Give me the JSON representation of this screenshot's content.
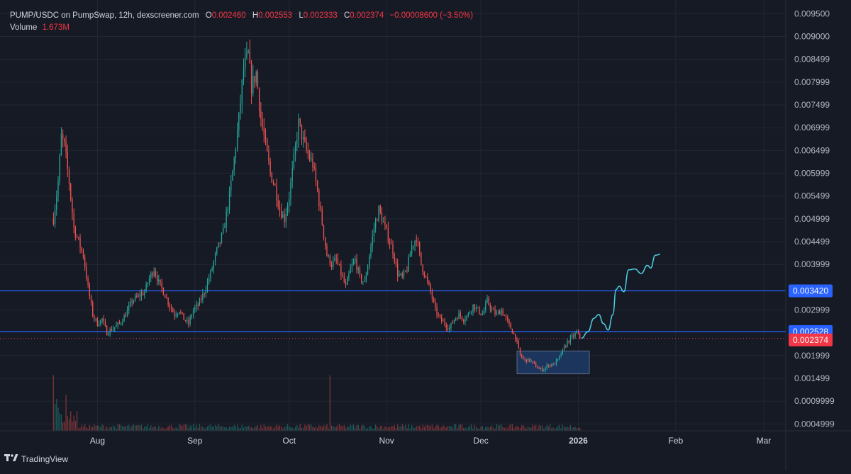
{
  "header": {
    "symbol": "PUMP/USDC on PumpSwap, 12h, dexscreener.com",
    "o_label": "O",
    "o_value": "0.002460",
    "h_label": "H",
    "h_value": "0.002553",
    "l_label": "L",
    "l_value": "0.002333",
    "c_label": "C",
    "c_value": "0.002374",
    "change": "−0.00008600 (−3.50%)",
    "volume_label": "Volume",
    "volume_value": "1.673M"
  },
  "branding": {
    "text": "TradingView",
    "icon": "tradingview-logo-icon"
  },
  "colors": {
    "background": "#161a25",
    "up": "#26a69a",
    "down": "#ef5350",
    "level_line": "#2962ff",
    "price_line": "#f23645",
    "projection": "#4dd0e1",
    "zone": "#1e3a66"
  },
  "chart_data": {
    "type": "candlestick",
    "interval": "12h",
    "y_axis": {
      "ylim": [
        0.00035,
        0.0098
      ],
      "ticks": [
        "0.009500",
        "0.009000",
        "0.008499",
        "0.007999",
        "0.007499",
        "0.006999",
        "0.006499",
        "0.005999",
        "0.005499",
        "0.004999",
        "0.004499",
        "0.003999",
        "0.002999",
        "0.001999",
        "0.001499",
        "0.0009999",
        "0.0004999"
      ]
    },
    "x_axis": {
      "ticks": [
        {
          "label": "Aug",
          "day": 12
        },
        {
          "label": "Sep",
          "day": 43
        },
        {
          "label": "Oct",
          "day": 73
        },
        {
          "label": "Nov",
          "day": 104
        },
        {
          "label": "Dec",
          "day": 134
        },
        {
          "label": "2026",
          "day": 165,
          "bold": true
        },
        {
          "label": "Feb",
          "day": 196
        },
        {
          "label": "Mar",
          "day": 224
        }
      ],
      "day_range": [
        -19,
        231
      ]
    },
    "close_path": [
      [
        -2,
        0.005
      ],
      [
        -0.5,
        0.0058
      ],
      [
        0.5,
        0.0068
      ],
      [
        1.5,
        0.0066
      ],
      [
        3,
        0.0058
      ],
      [
        4.5,
        0.0048
      ],
      [
        6,
        0.0045
      ],
      [
        7.5,
        0.0042
      ],
      [
        9,
        0.0035
      ],
      [
        10.5,
        0.0029
      ],
      [
        12,
        0.0027
      ],
      [
        13.5,
        0.0028
      ],
      [
        15,
        0.0025
      ],
      [
        17,
        0.0026
      ],
      [
        19,
        0.0027
      ],
      [
        21,
        0.0029
      ],
      [
        23,
        0.0032
      ],
      [
        25,
        0.0033
      ],
      [
        27,
        0.0034
      ],
      [
        28.5,
        0.0037
      ],
      [
        30,
        0.0039
      ],
      [
        31.5,
        0.0036
      ],
      [
        33,
        0.0034
      ],
      [
        35,
        0.0031
      ],
      [
        36.5,
        0.0029
      ],
      [
        38,
        0.003
      ],
      [
        39.5,
        0.0028
      ],
      [
        41,
        0.0027
      ],
      [
        42.5,
        0.003
      ],
      [
        44,
        0.0031
      ],
      [
        46,
        0.0034
      ],
      [
        48,
        0.0038
      ],
      [
        50,
        0.0043
      ],
      [
        52,
        0.0047
      ],
      [
        54,
        0.0055
      ],
      [
        55.5,
        0.0063
      ],
      [
        57,
        0.0072
      ],
      [
        58.5,
        0.0083
      ],
      [
        60,
        0.0086
      ],
      [
        61,
        0.0079
      ],
      [
        62.5,
        0.0082
      ],
      [
        64,
        0.0072
      ],
      [
        65.5,
        0.0066
      ],
      [
        67,
        0.006
      ],
      [
        68.5,
        0.0057
      ],
      [
        70,
        0.0052
      ],
      [
        71.5,
        0.005
      ],
      [
        73,
        0.0055
      ],
      [
        74.5,
        0.0063
      ],
      [
        76,
        0.0071
      ],
      [
        77.5,
        0.0067
      ],
      [
        79,
        0.0064
      ],
      [
        80.5,
        0.0062
      ],
      [
        82,
        0.0056
      ],
      [
        83.5,
        0.0049
      ],
      [
        85,
        0.0042
      ],
      [
        86.5,
        0.004
      ],
      [
        88,
        0.0041
      ],
      [
        89.5,
        0.0038
      ],
      [
        91,
        0.0035
      ],
      [
        92.5,
        0.0039
      ],
      [
        94,
        0.0041
      ],
      [
        95.5,
        0.0037
      ],
      [
        97,
        0.0036
      ],
      [
        98.5,
        0.0042
      ],
      [
        100,
        0.0048
      ],
      [
        101.5,
        0.0052
      ],
      [
        103,
        0.0049
      ],
      [
        104.5,
        0.0046
      ],
      [
        106,
        0.0043
      ],
      [
        107.5,
        0.0038
      ],
      [
        109,
        0.0037
      ],
      [
        110.5,
        0.0039
      ],
      [
        112,
        0.0044
      ],
      [
        113.5,
        0.0046
      ],
      [
        115,
        0.004
      ],
      [
        116.5,
        0.0037
      ],
      [
        118,
        0.0034
      ],
      [
        119.5,
        0.003
      ],
      [
        121,
        0.0028
      ],
      [
        122.5,
        0.0027
      ],
      [
        124,
        0.0026
      ],
      [
        125.5,
        0.0028
      ],
      [
        127,
        0.0029
      ],
      [
        128.5,
        0.0028
      ],
      [
        130,
        0.0029
      ],
      [
        131.5,
        0.0031
      ],
      [
        133,
        0.003
      ],
      [
        134.5,
        0.0029
      ],
      [
        136,
        0.0032
      ],
      [
        137.5,
        0.003
      ],
      [
        139,
        0.0029
      ],
      [
        140.5,
        0.003
      ],
      [
        142,
        0.0028
      ],
      [
        143.5,
        0.0026
      ],
      [
        145,
        0.0024
      ],
      [
        146.5,
        0.002
      ],
      [
        148,
        0.0019
      ],
      [
        149.5,
        0.0019
      ],
      [
        151,
        0.0018
      ],
      [
        152.5,
        0.0017
      ],
      [
        154,
        0.0017
      ],
      [
        155.5,
        0.0018
      ],
      [
        157,
        0.0018
      ],
      [
        158.5,
        0.0019
      ],
      [
        160,
        0.0021
      ],
      [
        161.5,
        0.0023
      ],
      [
        163,
        0.0024
      ],
      [
        164.5,
        0.0025
      ],
      [
        165.5,
        0.002374
      ]
    ],
    "volume_ylim": [
      0,
      0.0025
    ],
    "horizontal_levels": [
      {
        "price": 0.00342,
        "label": "0.003420"
      },
      {
        "price": 0.002528,
        "label": "0.002528"
      }
    ],
    "last_price": {
      "price": 0.002374,
      "label": "0.002374"
    },
    "demand_zone": {
      "day_start": 145.5,
      "day_end": 168.5,
      "price_low": 0.0016,
      "price_high": 0.0021
    },
    "projection": [
      [
        166,
        0.00238
      ],
      [
        168,
        0.00252
      ],
      [
        170,
        0.00282
      ],
      [
        171.5,
        0.0029
      ],
      [
        173,
        0.0027
      ],
      [
        174.5,
        0.00256
      ],
      [
        176,
        0.0029
      ],
      [
        177,
        0.00345
      ],
      [
        178,
        0.00352
      ],
      [
        179.5,
        0.0034
      ],
      [
        181,
        0.00388
      ],
      [
        183,
        0.0039
      ],
      [
        185,
        0.0038
      ],
      [
        187,
        0.00398
      ],
      [
        188,
        0.00392
      ],
      [
        189.5,
        0.0042
      ],
      [
        191,
        0.00422
      ]
    ]
  }
}
